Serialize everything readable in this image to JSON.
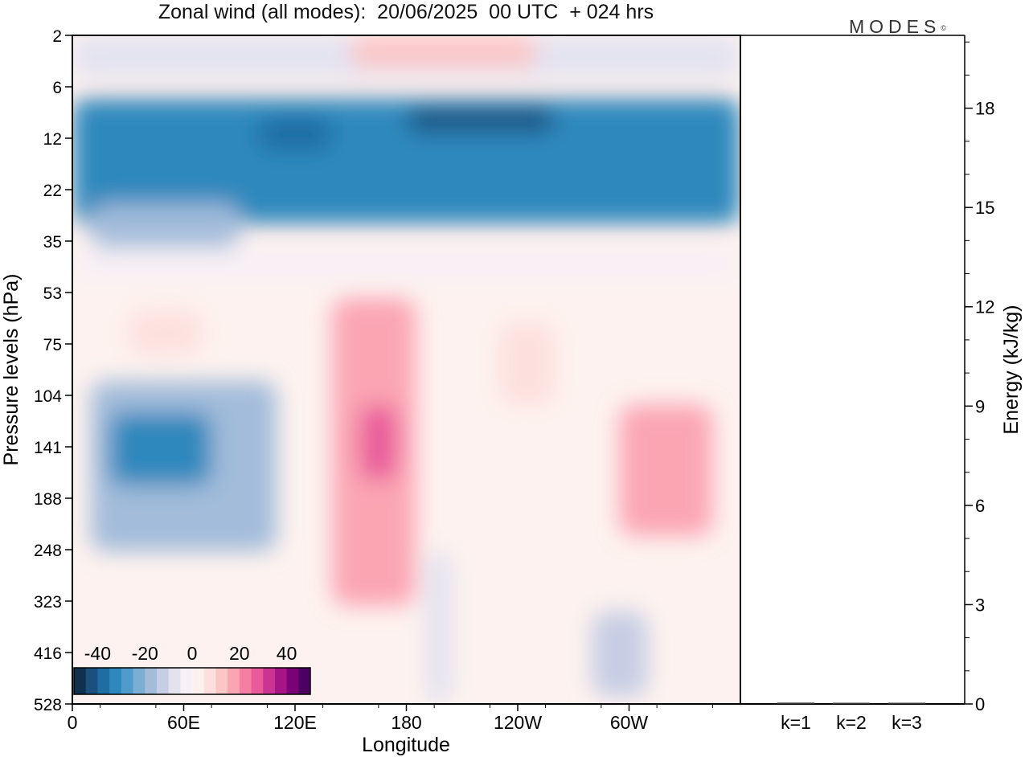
{
  "title": "Zonal wind (all modes):  20/06/2025  00 UTC  + 024 hrs",
  "logo": {
    "text": "MODES",
    "mark": "©"
  },
  "chart_data": [
    {
      "type": "heatmap",
      "title": "Zonal wind (all modes):  20/06/2025  00 UTC  + 024 hrs",
      "xlabel": "Longitude",
      "ylabel": "Pressure levels (hPa)",
      "x_ticks": [
        "0",
        "60E",
        "120E",
        "180",
        "120W",
        "60W"
      ],
      "y_ticks": [
        "2",
        "6",
        "12",
        "22",
        "35",
        "53",
        "75",
        "104",
        "141",
        "188",
        "248",
        "323",
        "416",
        "528"
      ],
      "colorbar": {
        "tick_labels": [
          "-40",
          "-20",
          "0",
          "20",
          "40"
        ],
        "range": [
          -50,
          50
        ],
        "colors": [
          "#10304f",
          "#1a4f7e",
          "#1e6ea4",
          "#2f88bd",
          "#4f9ccc",
          "#7aaed2",
          "#a2bcda",
          "#c6cde4",
          "#e3e3f0",
          "#f7f0f5",
          "#fdf2ef",
          "#fde0dd",
          "#fcc5c6",
          "#fba5b3",
          "#f57fa3",
          "#e95a9b",
          "#cc3494",
          "#a71485",
          "#7a0176",
          "#4d0062"
        ]
      },
      "regions": [
        {
          "lon": [
            0,
            360
          ],
          "p": [
            2,
            5
          ],
          "value": -8
        },
        {
          "lon": [
            150,
            250
          ],
          "p": [
            2,
            4
          ],
          "value": 10
        },
        {
          "lon": [
            0,
            360
          ],
          "p": [
            7,
            30
          ],
          "value": -33
        },
        {
          "lon": [
            180,
            260
          ],
          "p": [
            8,
            11
          ],
          "value": -41
        },
        {
          "lon": [
            100,
            140
          ],
          "p": [
            9,
            14
          ],
          "value": -37
        },
        {
          "lon": [
            10,
            90
          ],
          "p": [
            25,
            37
          ],
          "value": -18
        },
        {
          "lon": [
            0,
            360
          ],
          "p": [
            37,
            48
          ],
          "value": -5
        },
        {
          "lon": [
            30,
            70
          ],
          "p": [
            60,
            80
          ],
          "value": 8
        },
        {
          "lon": [
            140,
            185
          ],
          "p": [
            55,
            330
          ],
          "value": 15
        },
        {
          "lon": [
            155,
            175
          ],
          "p": [
            110,
            170
          ],
          "value": 26
        },
        {
          "lon": [
            230,
            260
          ],
          "p": [
            65,
            110
          ],
          "value": 8
        },
        {
          "lon": [
            295,
            345
          ],
          "p": [
            110,
            230
          ],
          "value": 18
        },
        {
          "lon": [
            10,
            110
          ],
          "p": [
            95,
            250
          ],
          "value": -16
        },
        {
          "lon": [
            20,
            75
          ],
          "p": [
            115,
            175
          ],
          "value": -34
        },
        {
          "lon": [
            280,
            310
          ],
          "p": [
            340,
            510
          ],
          "value": -12
        },
        {
          "lon": [
            190,
            205
          ],
          "p": [
            250,
            528
          ],
          "value": -6
        }
      ]
    },
    {
      "type": "bar",
      "categories": [
        "k=1",
        "k=2",
        "k=3"
      ],
      "values": [
        0.04,
        0.03,
        0.02
      ],
      "ylabel": "Energy (kJ/kg)",
      "y_ticks": [
        "0",
        "3",
        "6",
        "9",
        "12",
        "15",
        "18"
      ],
      "ylim": [
        0,
        20.2
      ]
    }
  ]
}
